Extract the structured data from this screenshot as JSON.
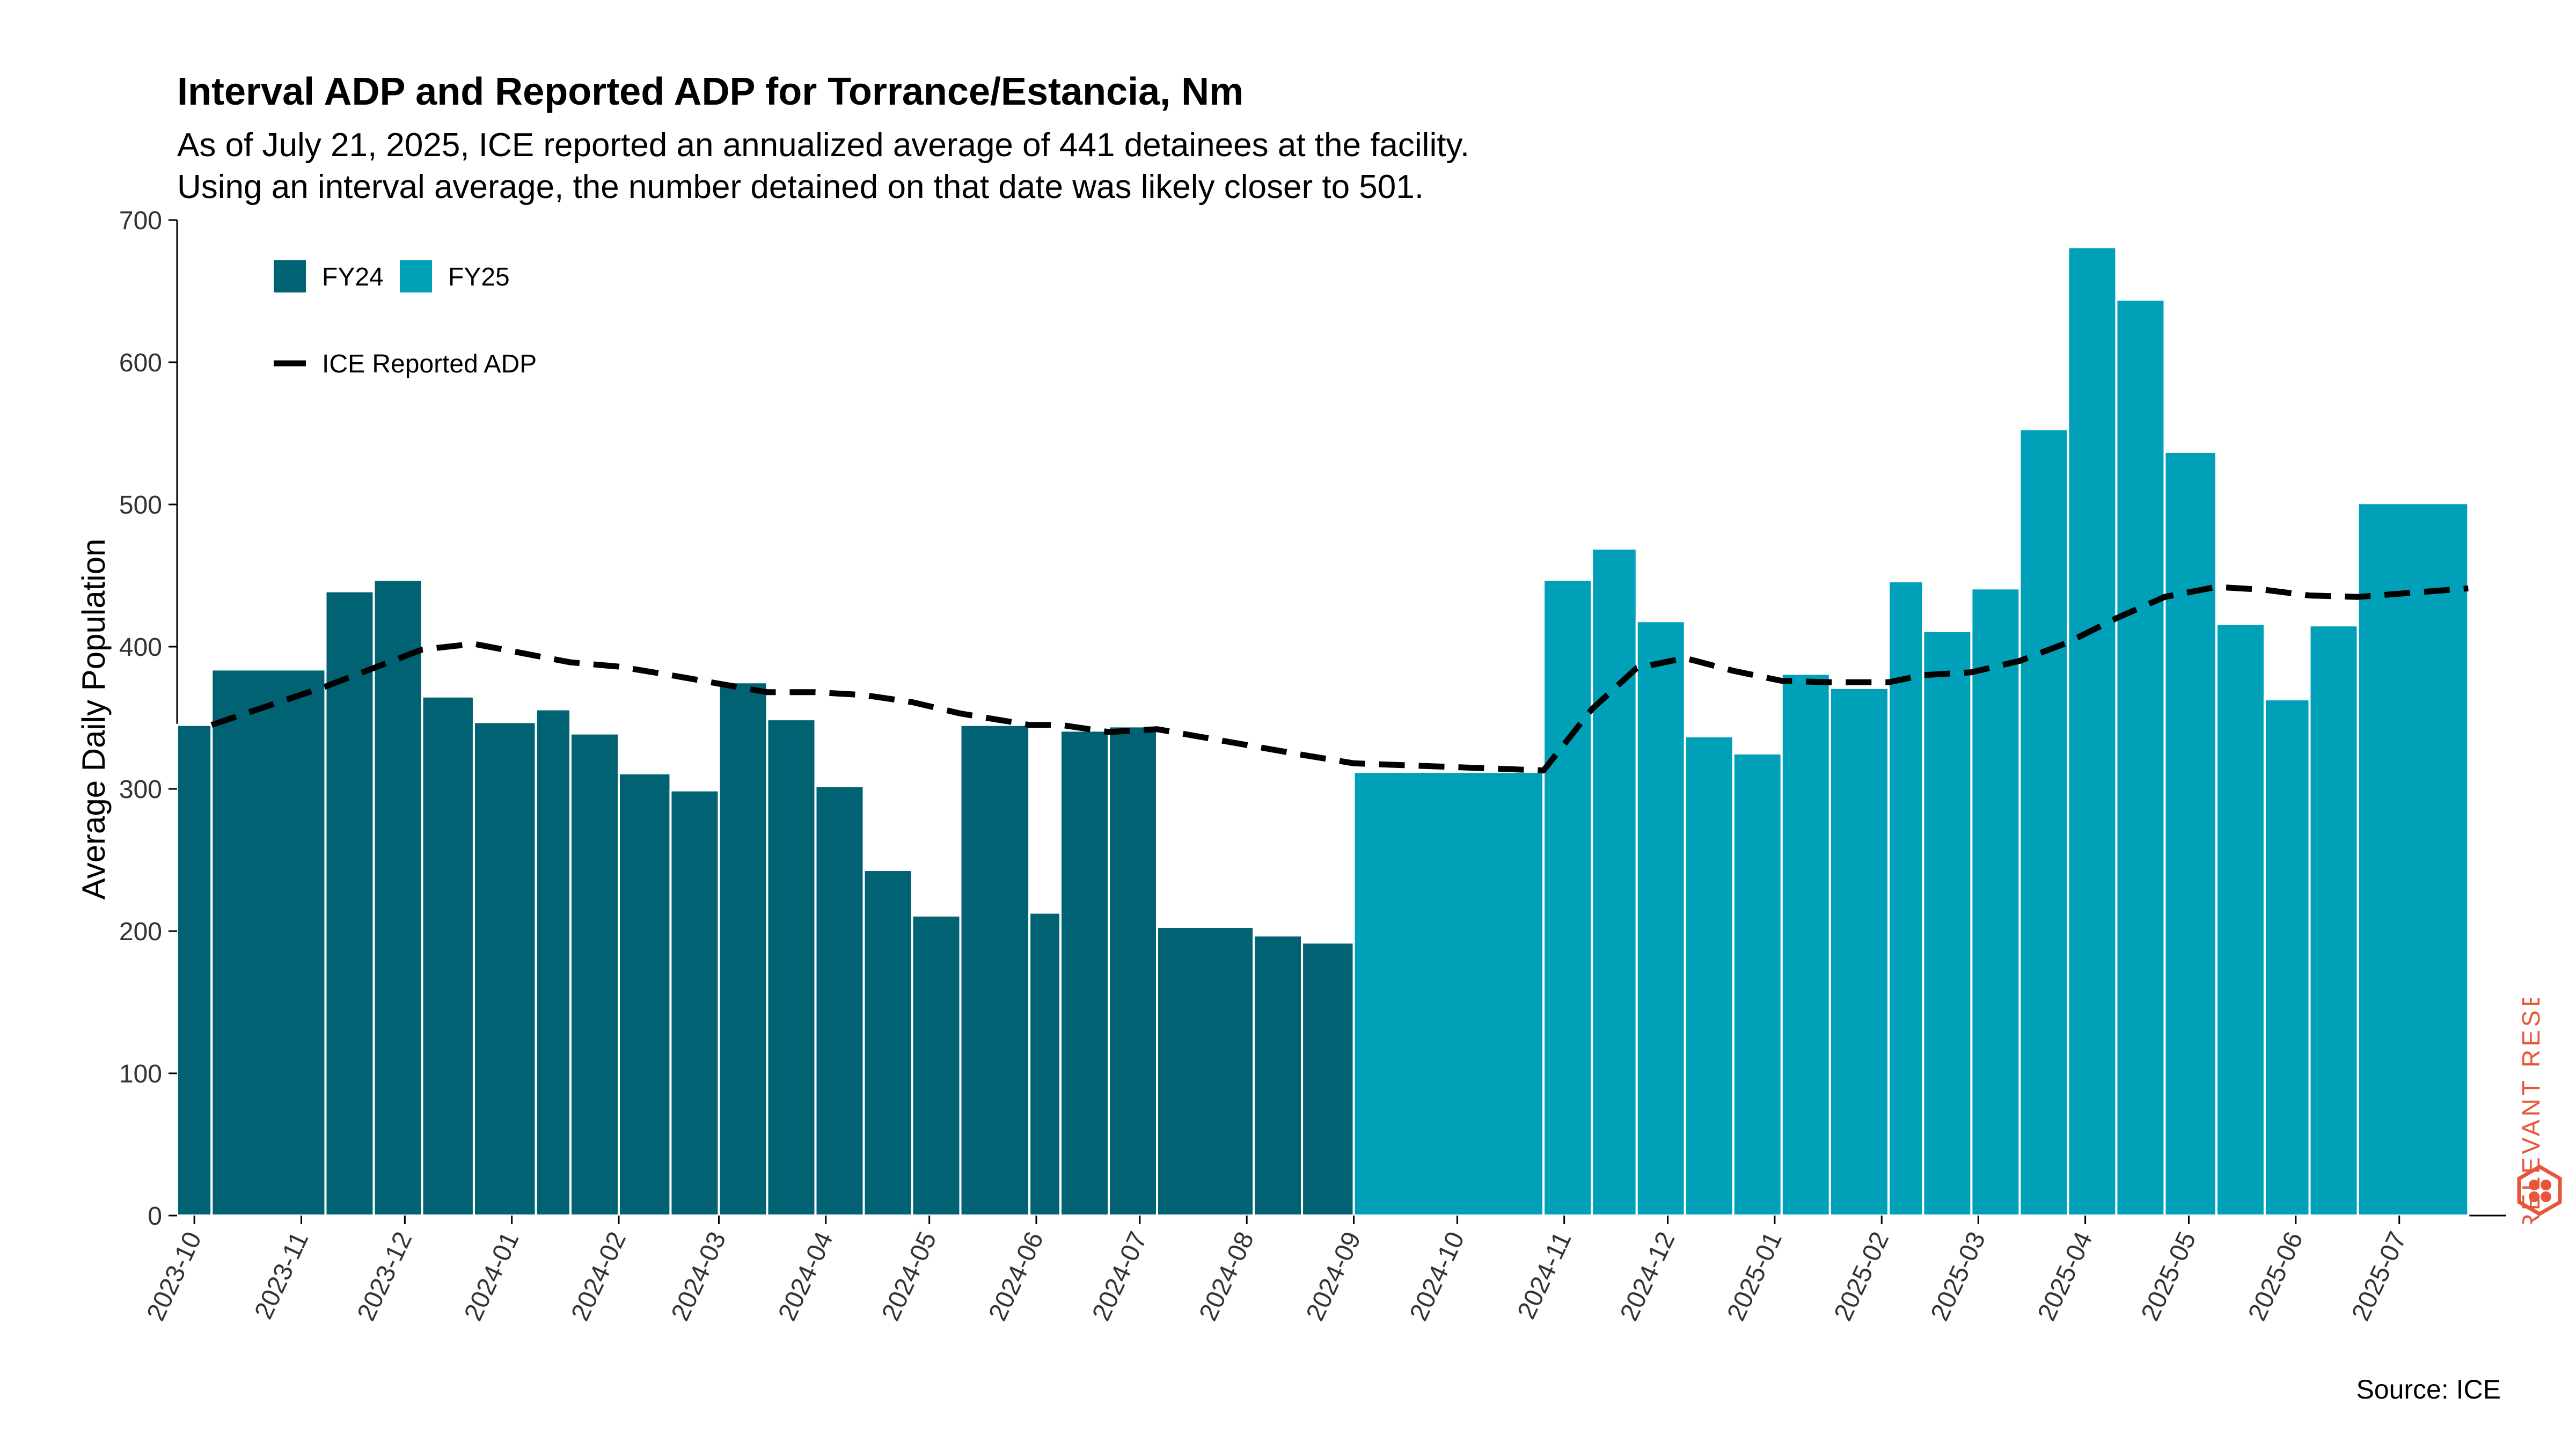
{
  "title": "Interval ADP and Reported ADP for Torrance/Estancia, Nm",
  "subtitle": [
    "As of July 21, 2025, ICE reported an annualized average of 441 detainees at the facility.",
    "Using an interval average, the number detained on that date was likely closer to 501."
  ],
  "source": "Source: ICE",
  "logo": {
    "text": "RELEVANT RESEARCH",
    "color": "#e9553a"
  },
  "chart_data": {
    "type": "bar",
    "ylabel": "Average Daily Population",
    "ylim": [
      0,
      700
    ],
    "yticks": [
      0,
      100,
      200,
      300,
      400,
      500,
      600,
      700
    ],
    "xlim": [
      "2023-09-26",
      "2025-08-01"
    ],
    "xticks": [
      "2023-10",
      "2023-11",
      "2023-12",
      "2024-01",
      "2024-02",
      "2024-03",
      "2024-04",
      "2024-05",
      "2024-06",
      "2024-07",
      "2024-08",
      "2024-09",
      "2024-10",
      "2024-11",
      "2024-12",
      "2025-01",
      "2025-02",
      "2025-03",
      "2025-04",
      "2025-05",
      "2025-06",
      "2025-07"
    ],
    "colors": {
      "FY24": "#006272",
      "FY25": "#00a0b8",
      "line": "#000000"
    },
    "legend": [
      {
        "label": "FY24",
        "kind": "bar",
        "series": "FY24"
      },
      {
        "label": "FY25",
        "kind": "bar",
        "series": "FY25"
      },
      {
        "label": "ICE Reported ADP",
        "kind": "dashed-line",
        "series": "line"
      }
    ],
    "legend_position": "top-left",
    "bars": [
      {
        "start": "2023-09-26",
        "end": "2023-10-06",
        "value": 345,
        "fy": "FY24"
      },
      {
        "start": "2023-10-06",
        "end": "2023-11-08",
        "value": 384,
        "fy": "FY24"
      },
      {
        "start": "2023-11-08",
        "end": "2023-11-22",
        "value": 439,
        "fy": "FY24"
      },
      {
        "start": "2023-11-22",
        "end": "2023-12-06",
        "value": 447,
        "fy": "FY24"
      },
      {
        "start": "2023-12-06",
        "end": "2023-12-21",
        "value": 365,
        "fy": "FY24"
      },
      {
        "start": "2023-12-21",
        "end": "2024-01-08",
        "value": 347,
        "fy": "FY24"
      },
      {
        "start": "2024-01-08",
        "end": "2024-01-18",
        "value": 356,
        "fy": "FY24"
      },
      {
        "start": "2024-01-18",
        "end": "2024-02-01",
        "value": 339,
        "fy": "FY24"
      },
      {
        "start": "2024-02-01",
        "end": "2024-02-16",
        "value": 311,
        "fy": "FY24"
      },
      {
        "start": "2024-02-16",
        "end": "2024-03-01",
        "value": 299,
        "fy": "FY24"
      },
      {
        "start": "2024-03-01",
        "end": "2024-03-15",
        "value": 375,
        "fy": "FY24"
      },
      {
        "start": "2024-03-15",
        "end": "2024-03-29",
        "value": 349,
        "fy": "FY24"
      },
      {
        "start": "2024-03-29",
        "end": "2024-04-12",
        "value": 302,
        "fy": "FY24"
      },
      {
        "start": "2024-04-12",
        "end": "2024-04-26",
        "value": 243,
        "fy": "FY24"
      },
      {
        "start": "2024-04-26",
        "end": "2024-05-10",
        "value": 211,
        "fy": "FY24"
      },
      {
        "start": "2024-05-10",
        "end": "2024-05-30",
        "value": 345,
        "fy": "FY24"
      },
      {
        "start": "2024-05-30",
        "end": "2024-06-08",
        "value": 213,
        "fy": "FY24"
      },
      {
        "start": "2024-06-08",
        "end": "2024-06-22",
        "value": 341,
        "fy": "FY24"
      },
      {
        "start": "2024-06-22",
        "end": "2024-07-06",
        "value": 344,
        "fy": "FY24"
      },
      {
        "start": "2024-07-06",
        "end": "2024-08-03",
        "value": 203,
        "fy": "FY24"
      },
      {
        "start": "2024-08-03",
        "end": "2024-08-17",
        "value": 197,
        "fy": "FY24"
      },
      {
        "start": "2024-08-17",
        "end": "2024-09-01",
        "value": 192,
        "fy": "FY24"
      },
      {
        "start": "2024-09-01",
        "end": "2024-10-26",
        "value": 312,
        "fy": "FY25"
      },
      {
        "start": "2024-10-26",
        "end": "2024-11-09",
        "value": 447,
        "fy": "FY25"
      },
      {
        "start": "2024-11-09",
        "end": "2024-11-22",
        "value": 469,
        "fy": "FY25"
      },
      {
        "start": "2024-11-22",
        "end": "2024-12-06",
        "value": 418,
        "fy": "FY25"
      },
      {
        "start": "2024-12-06",
        "end": "2024-12-20",
        "value": 337,
        "fy": "FY25"
      },
      {
        "start": "2024-12-20",
        "end": "2025-01-03",
        "value": 325,
        "fy": "FY25"
      },
      {
        "start": "2025-01-03",
        "end": "2025-01-17",
        "value": 381,
        "fy": "FY25"
      },
      {
        "start": "2025-01-17",
        "end": "2025-02-03",
        "value": 371,
        "fy": "FY25"
      },
      {
        "start": "2025-02-03",
        "end": "2025-02-13",
        "value": 446,
        "fy": "FY25"
      },
      {
        "start": "2025-02-13",
        "end": "2025-02-27",
        "value": 411,
        "fy": "FY25"
      },
      {
        "start": "2025-02-27",
        "end": "2025-03-13",
        "value": 441,
        "fy": "FY25"
      },
      {
        "start": "2025-03-13",
        "end": "2025-03-27",
        "value": 553,
        "fy": "FY25"
      },
      {
        "start": "2025-03-27",
        "end": "2025-04-10",
        "value": 681,
        "fy": "FY25"
      },
      {
        "start": "2025-04-10",
        "end": "2025-04-24",
        "value": 644,
        "fy": "FY25"
      },
      {
        "start": "2025-04-24",
        "end": "2025-05-09",
        "value": 537,
        "fy": "FY25"
      },
      {
        "start": "2025-05-09",
        "end": "2025-05-23",
        "value": 416,
        "fy": "FY25"
      },
      {
        "start": "2025-05-23",
        "end": "2025-06-05",
        "value": 363,
        "fy": "FY25"
      },
      {
        "start": "2025-06-05",
        "end": "2025-06-19",
        "value": 415,
        "fy": "FY25"
      },
      {
        "start": "2025-06-19",
        "end": "2025-07-21",
        "value": 501,
        "fy": "FY25"
      }
    ],
    "line": {
      "name": "ICE Reported ADP",
      "points": [
        [
          "2023-10-06",
          345
        ],
        [
          "2023-11-08",
          372
        ],
        [
          "2023-12-06",
          398
        ],
        [
          "2023-12-21",
          402
        ],
        [
          "2024-01-18",
          389
        ],
        [
          "2024-02-01",
          386
        ],
        [
          "2024-02-16",
          380
        ],
        [
          "2024-03-01",
          374
        ],
        [
          "2024-03-15",
          368
        ],
        [
          "2024-03-29",
          368
        ],
        [
          "2024-04-12",
          366
        ],
        [
          "2024-04-26",
          361
        ],
        [
          "2024-05-10",
          353
        ],
        [
          "2024-05-30",
          345
        ],
        [
          "2024-06-08",
          345
        ],
        [
          "2024-06-22",
          340
        ],
        [
          "2024-07-06",
          342
        ],
        [
          "2024-08-03",
          330
        ],
        [
          "2024-08-17",
          324
        ],
        [
          "2024-09-01",
          318
        ],
        [
          "2024-10-26",
          313
        ],
        [
          "2024-11-09",
          356
        ],
        [
          "2024-11-22",
          385
        ],
        [
          "2024-12-06",
          392
        ],
        [
          "2024-12-20",
          383
        ],
        [
          "2025-01-03",
          376
        ],
        [
          "2025-01-17",
          375
        ],
        [
          "2025-02-03",
          375
        ],
        [
          "2025-02-13",
          380
        ],
        [
          "2025-02-27",
          382
        ],
        [
          "2025-03-13",
          390
        ],
        [
          "2025-03-27",
          403
        ],
        [
          "2025-04-10",
          420
        ],
        [
          "2025-04-24",
          435
        ],
        [
          "2025-05-09",
          442
        ],
        [
          "2025-05-23",
          440
        ],
        [
          "2025-06-05",
          436
        ],
        [
          "2025-06-19",
          435
        ],
        [
          "2025-07-21",
          441
        ]
      ]
    }
  }
}
